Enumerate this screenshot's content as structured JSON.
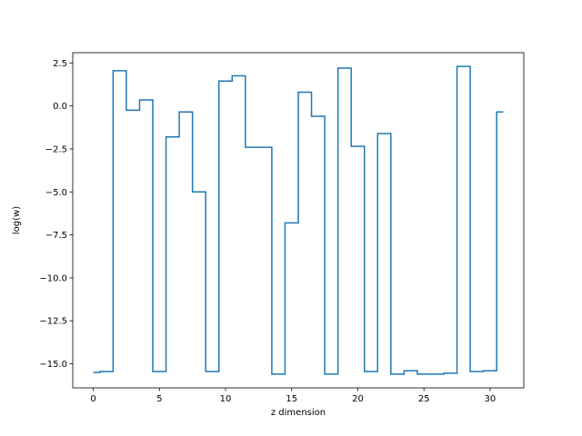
{
  "chart_data": {
    "type": "line",
    "drawstyle": "steps-mid",
    "xlabel": "z dimension",
    "ylabel": "log(w)",
    "xlim": [
      -1.55,
      32.55
    ],
    "ylim": [
      -16.4,
      3.1
    ],
    "xticks": [
      0,
      5,
      10,
      15,
      20,
      25,
      30
    ],
    "xtick_labels": [
      "0",
      "5",
      "10",
      "15",
      "20",
      "25",
      "30"
    ],
    "yticks": [
      2.5,
      0.0,
      -2.5,
      -5.0,
      -7.5,
      -10.0,
      -12.5,
      -15.0
    ],
    "ytick_labels": [
      "2.5",
      "0.0",
      "−2.5",
      "−5.0",
      "−7.5",
      "−10.0",
      "−12.5",
      "−15.0"
    ],
    "grid": false,
    "series": [
      {
        "color": "#1f77b4",
        "x": [
          0,
          1,
          2,
          3,
          4,
          5,
          6,
          7,
          8,
          9,
          10,
          11,
          12,
          13,
          14,
          15,
          16,
          17,
          18,
          19,
          20,
          21,
          22,
          23,
          24,
          25,
          26,
          27,
          28,
          29,
          30,
          31
        ],
        "y": [
          -15.5,
          -15.45,
          2.05,
          -0.25,
          0.35,
          -15.45,
          -1.8,
          -0.35,
          -5.0,
          -15.45,
          1.45,
          1.75,
          -2.4,
          -2.4,
          -15.6,
          -6.8,
          0.8,
          -0.6,
          -15.6,
          2.2,
          -2.35,
          -15.45,
          -1.6,
          -15.6,
          -15.4,
          -15.6,
          -15.6,
          -15.55,
          2.3,
          -15.45,
          -15.4,
          -0.35
        ]
      }
    ]
  }
}
